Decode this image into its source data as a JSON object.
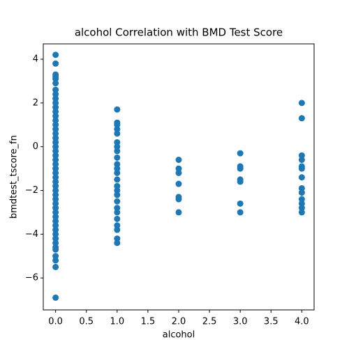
{
  "chart_data": {
    "type": "scatter",
    "title": "alcohol Correlation with BMD Test Score",
    "x_label": "alcohol",
    "y_label": "bmdtest_tscore_fn",
    "color": "#1f77b4",
    "x": [
      0,
      0,
      0,
      0,
      0,
      0,
      0,
      0,
      0,
      0,
      0,
      0,
      0,
      0,
      0,
      0,
      0,
      0,
      0,
      0,
      0,
      0,
      0,
      0,
      0,
      0,
      0,
      0,
      0,
      0,
      0,
      0,
      0,
      0,
      0,
      0,
      0,
      0,
      0,
      0,
      0,
      0,
      0,
      0,
      0,
      0,
      0,
      0,
      1,
      1,
      1,
      1,
      1,
      1,
      1,
      1,
      1,
      1,
      1,
      1,
      1,
      1,
      1,
      1,
      1,
      1,
      1,
      1,
      1,
      1,
      1,
      1,
      2,
      2,
      2,
      2,
      2,
      2,
      2,
      3,
      3,
      3,
      3,
      3,
      3,
      3,
      4,
      4,
      4,
      4,
      4,
      4,
      4,
      4,
      4,
      4,
      4,
      4,
      4
    ],
    "values": [
      4.2,
      3.8,
      3.3,
      3.2,
      3.1,
      2.9,
      2.6,
      2.4,
      2.2,
      2.0,
      1.8,
      1.6,
      1.4,
      1.2,
      1.0,
      0.8,
      0.6,
      0.4,
      0.2,
      0.0,
      -0.2,
      -0.4,
      -0.6,
      -0.8,
      -1.0,
      -1.2,
      -1.4,
      -1.6,
      -1.8,
      -2.0,
      -2.2,
      -2.4,
      -2.6,
      -2.8,
      -3.0,
      -3.2,
      -3.4,
      -3.6,
      -3.8,
      -4.0,
      -4.2,
      -4.4,
      -4.6,
      -4.7,
      -5.0,
      -5.2,
      -5.5,
      -6.9,
      1.7,
      1.1,
      1.0,
      0.8,
      0.6,
      0.2,
      0.0,
      -0.2,
      -0.5,
      -0.8,
      -1.0,
      -1.2,
      -1.5,
      -1.8,
      -2.0,
      -2.2,
      -2.5,
      -2.8,
      -3.0,
      -3.3,
      -3.6,
      -3.8,
      -4.2,
      -4.4,
      -0.6,
      -1.0,
      -1.2,
      -1.7,
      -2.3,
      -2.4,
      -3.0,
      -0.3,
      -0.9,
      -1.0,
      -1.5,
      -1.6,
      -2.6,
      -3.0,
      2.0,
      1.3,
      -0.4,
      -0.6,
      -0.9,
      -1.0,
      -1.4,
      -1.9,
      -2.1,
      -2.4,
      -2.6,
      -2.8,
      -3.0
    ],
    "xlim": [
      -0.2,
      4.2
    ],
    "ylim": [
      -7.46,
      4.7
    ],
    "xticks": [
      {
        "value": 0,
        "label": "0.0"
      },
      {
        "value": 0.5,
        "label": "0.5"
      },
      {
        "value": 1,
        "label": "1.0"
      },
      {
        "value": 1.5,
        "label": "1.5"
      },
      {
        "value": 2,
        "label": "2.0"
      },
      {
        "value": 2.5,
        "label": "2.5"
      },
      {
        "value": 3,
        "label": "3.0"
      },
      {
        "value": 3.5,
        "label": "3.5"
      },
      {
        "value": 4,
        "label": "4.0"
      }
    ],
    "yticks": [
      {
        "value": -6,
        "label": "−6"
      },
      {
        "value": -4,
        "label": "−4"
      },
      {
        "value": -2,
        "label": "−2"
      },
      0,
      2,
      4
    ]
  }
}
